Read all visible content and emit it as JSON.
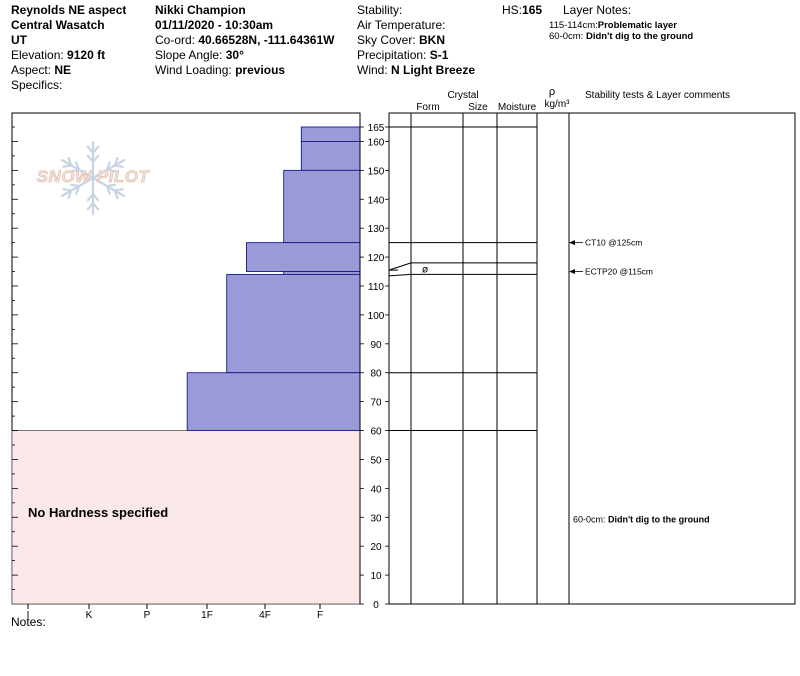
{
  "header": {
    "col1": {
      "line1": "Reynolds NE aspect",
      "line2": "Central Wasatch",
      "line3": "UT",
      "elevation_label": "Elevation: ",
      "elevation_value": "9120 ft",
      "aspect_label": "Aspect: ",
      "aspect_value": "NE",
      "specifics_label": "Specifics:"
    },
    "col2": {
      "observer": "Nikki Champion",
      "datetime": "01/11/2020 - 10:30am",
      "coord_label": "Co-ord: ",
      "coord_value": "40.66528N, -111.64361W",
      "slope_label": "Slope Angle: ",
      "slope_value": "30°",
      "wind_loading_label": "Wind Loading: ",
      "wind_loading_value": "previous"
    },
    "col3": {
      "stability_label": "Stability:",
      "air_temp_label": "Air Temperature:",
      "sky_cover_label": "Sky Cover: ",
      "sky_cover_value": "BKN",
      "precip_label": "Precipitation: ",
      "precip_value": "S-1",
      "wind_label": "Wind: ",
      "wind_value": " N Light Breeze"
    },
    "hs_label": "HS:",
    "hs_value": "165",
    "layer_notes": {
      "title": "Layer Notes:",
      "note1_range": "115-114cm:",
      "note1_text": "Problematic layer",
      "note2_range": "60-0cm: ",
      "note2_text": "Didn't dig to the ground"
    }
  },
  "logo_text": "SNOW PILOT",
  "notes_label": "Notes:",
  "no_hardness_text": "No Hardness specified",
  "colors": {
    "hardness_fill": "#9a9ad8",
    "hardness_stroke": "#1a1a8c",
    "no_hardness_fill": "#fbe9ea",
    "logo": "#c8d4e4",
    "logo_text": "#f3e0d8"
  },
  "chart_data": {
    "type": "snow_profile",
    "hs": 165,
    "y_range": [
      0,
      165
    ],
    "y_ticks": [
      0,
      10,
      20,
      30,
      40,
      50,
      60,
      70,
      80,
      90,
      100,
      110,
      120,
      130,
      140,
      150,
      160,
      165
    ],
    "hardness_scale": [
      "I",
      "K",
      "P",
      "1F",
      "4F",
      "F"
    ],
    "hardness_layers": [
      {
        "top": 165,
        "bottom": 160,
        "hardness_value": 0.34
      },
      {
        "top": 160,
        "bottom": 150,
        "hardness_value": 0.34
      },
      {
        "top": 150,
        "bottom": 125,
        "hardness_value": 0.66
      },
      {
        "top": 125,
        "bottom": 115,
        "hardness_value": 1.32
      },
      {
        "top": 115,
        "bottom": 114,
        "hardness_value": 0.66
      },
      {
        "top": 114,
        "bottom": 80,
        "hardness_value": 1.66
      },
      {
        "top": 80,
        "bottom": 60,
        "hardness_value": 2.33
      }
    ],
    "no_hardness_range": [
      0,
      60
    ],
    "column_headers": {
      "crystal": "Crystal",
      "form": "Form",
      "size": "Size",
      "moisture": "Moisture",
      "rho_symbol": "ρ",
      "density_unit": "kg/m³",
      "stability_comments": "Stability tests & Layer comments"
    },
    "layer_boundaries": [
      165,
      125,
      118,
      114,
      80,
      60
    ],
    "layer_form_symbol": "ø",
    "stability_tests": [
      {
        "depth": 125,
        "label": "CT10 @125cm"
      },
      {
        "depth": 115,
        "label": "ECTP20 @115cm"
      }
    ],
    "layer_comment": {
      "depth": 30,
      "range": "60-0cm: ",
      "text": "Didn't dig to the ground"
    }
  }
}
